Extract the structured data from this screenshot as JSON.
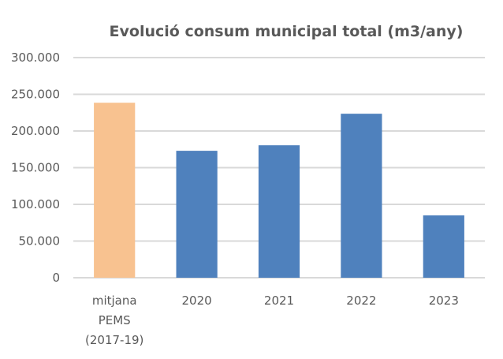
{
  "chart_data": {
    "type": "bar",
    "title": "Evolució consum municipal total (m3/any)",
    "xlabel": "",
    "ylabel": "",
    "categories": [
      [
        "mitjana",
        "PEMS",
        "(2017-19)"
      ],
      [
        "2020"
      ],
      [
        "2021"
      ],
      [
        "2022"
      ],
      [
        "2023"
      ]
    ],
    "values": [
      238500,
      173000,
      180500,
      223500,
      85000
    ],
    "bar_colors": [
      "#F8C290",
      "#4F81BD",
      "#4F81BD",
      "#4F81BD",
      "#4F81BD"
    ],
    "ylim": [
      0,
      300000
    ],
    "yticks": [
      0,
      50000,
      100000,
      150000,
      200000,
      250000,
      300000
    ],
    "ytick_labels": [
      "0",
      "50.000",
      "100.000",
      "150.000",
      "200.000",
      "250.000",
      "300.000"
    ],
    "grid": true,
    "legend": "none"
  }
}
